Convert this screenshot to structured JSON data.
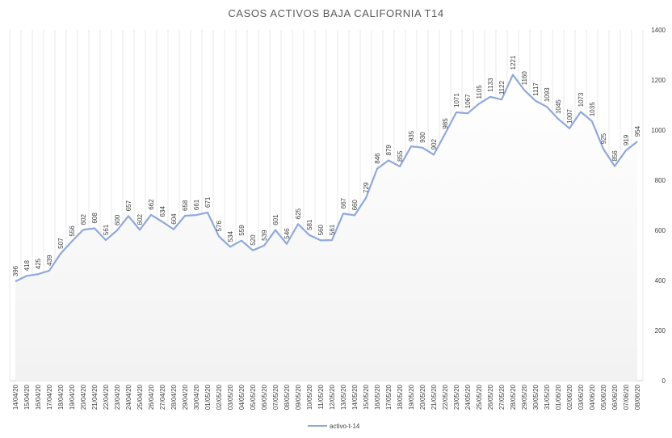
{
  "chart_data": {
    "type": "area",
    "title": "CASOS ACTIVOS BAJA CALIFORNIA T14",
    "xlabel": "",
    "ylabel": "",
    "ylim": [
      0,
      1400
    ],
    "yticks": [
      0,
      200,
      400,
      600,
      800,
      1000,
      1200,
      1400
    ],
    "y_axis_position": "right",
    "grid": "vertical",
    "legend_position": "bottom",
    "colors": {
      "line": "#8FA9DA",
      "grid": "#E3E3E3",
      "area_top": "#F5F5F5",
      "text": "#404040"
    },
    "categories": [
      "14/04/20",
      "15/04/20",
      "16/04/20",
      "17/04/20",
      "18/04/20",
      "19/04/20",
      "20/04/20",
      "21/04/20",
      "22/04/20",
      "23/04/20",
      "24/04/20",
      "25/04/20",
      "26/04/20",
      "27/04/20",
      "28/04/20",
      "29/04/20",
      "30/04/20",
      "01/05/20",
      "02/05/20",
      "03/05/20",
      "04/05/20",
      "05/05/20",
      "06/05/20",
      "07/05/20",
      "08/05/20",
      "09/05/20",
      "10/05/20",
      "11/05/20",
      "12/05/20",
      "13/05/20",
      "14/05/20",
      "15/05/20",
      "16/05/20",
      "17/05/20",
      "18/05/20",
      "19/05/20",
      "20/05/20",
      "21/05/20",
      "22/05/20",
      "23/05/20",
      "24/05/20",
      "25/05/20",
      "26/05/20",
      "27/05/20",
      "28/05/20",
      "29/05/20",
      "30/05/20",
      "31/05/20",
      "01/06/20",
      "02/06/20",
      "03/06/20",
      "04/06/20",
      "05/06/20",
      "06/06/20",
      "07/06/20",
      "08/06/20"
    ],
    "series": [
      {
        "name": "activo-t-14",
        "values": [
          396,
          418,
          425,
          439,
          507,
          556,
          602,
          608,
          561,
          600,
          657,
          602,
          662,
          634,
          604,
          658,
          661,
          671,
          576,
          534,
          559,
          520,
          539,
          601,
          546,
          625,
          581,
          560,
          561,
          667,
          660,
          729,
          846,
          879,
          855,
          935,
          930,
          902,
          985,
          1071,
          1067,
          1105,
          1133,
          1122,
          1221,
          1160,
          1117,
          1093,
          1045,
          1007,
          1073,
          1035,
          925,
          856,
          919,
          954
        ]
      }
    ]
  }
}
